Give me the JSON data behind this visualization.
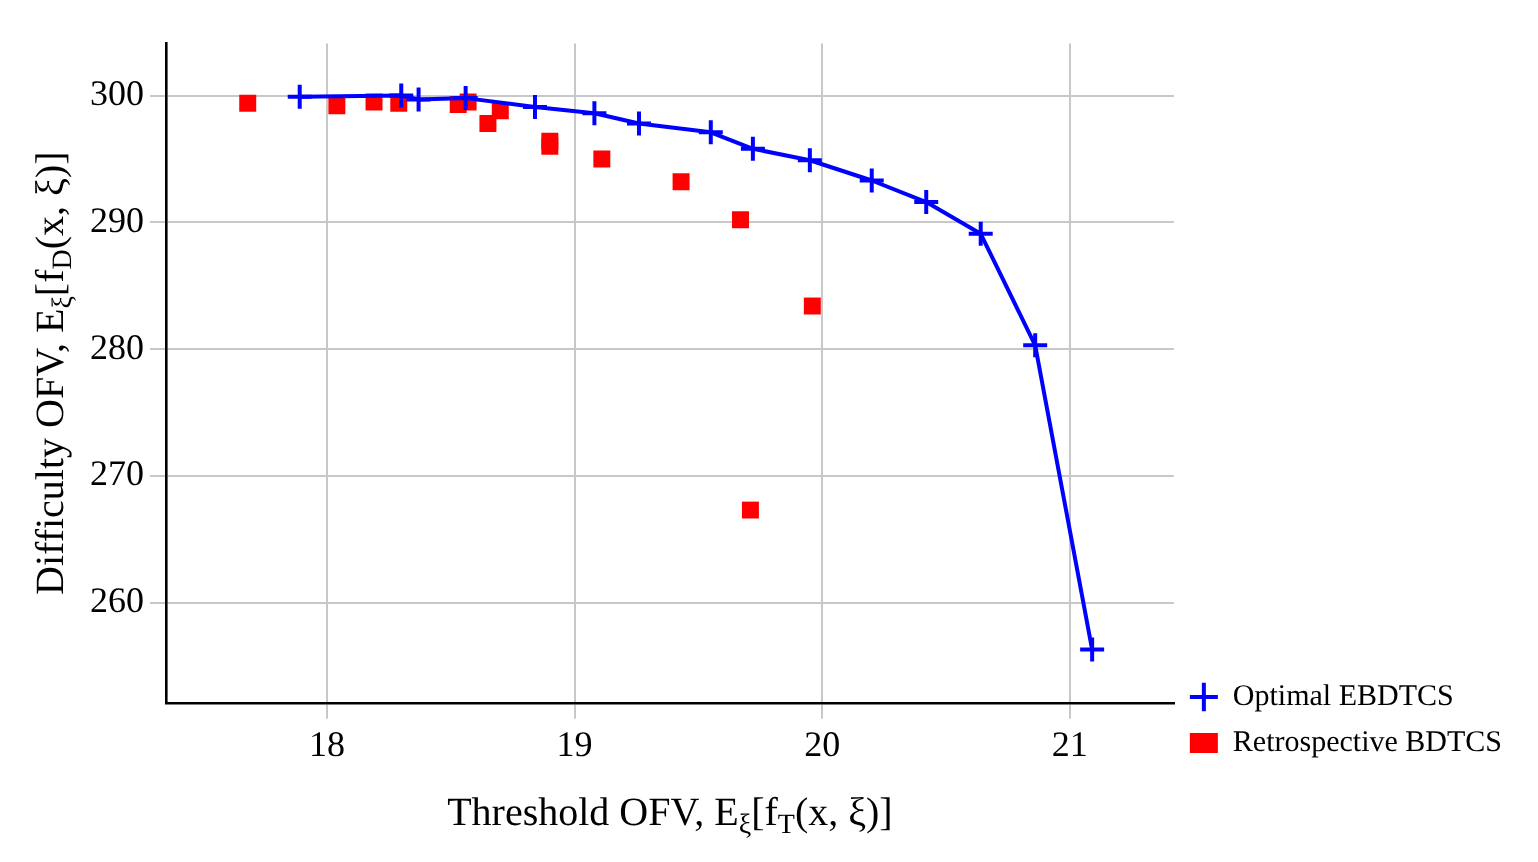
{
  "chart_data": {
    "type": "line",
    "xlabel": "Threshold OFV, E$_{ξ}$[f$_{T}$(x, ξ)]",
    "ylabel": "Difficulty OFV, E$_{ξ}$[f$_{D}$(x, ξ)]",
    "xlim": [
      17.35,
      21.42
    ],
    "xticks": [
      18,
      19,
      20,
      21
    ],
    "ylim": [
      252.1,
      304.1
    ],
    "yticks": [
      260,
      270,
      280,
      290,
      300
    ],
    "grid": true,
    "legend": "right",
    "series": [
      {
        "name": "Optimal EBDTCS",
        "color": "#0000ff",
        "marker": "cross",
        "line_style": "solid",
        "x": [
          17.89,
          18.3,
          18.37,
          18.56,
          18.84,
          19.08,
          19.26,
          19.55,
          19.72,
          19.95,
          20.2,
          20.42,
          20.64,
          20.86,
          21.09
        ],
        "values": [
          299.9,
          300,
          299.7,
          299.8,
          299.1,
          298.6,
          297.8,
          297.1,
          295.8,
          294.9,
          293.3,
          291.6,
          289.1,
          280.3,
          256.3
        ]
      },
      {
        "name": "Retrospective BDTCS",
        "type": "scatter",
        "color": "#ff0000",
        "marker": "square",
        "x": [
          17.68,
          18.04,
          18.19,
          18.29,
          18.53,
          18.57,
          18.7,
          18.65,
          18.9,
          18.9,
          19.11,
          19.43,
          19.67,
          19.96,
          19.71
        ],
        "values": [
          299.4,
          299.2,
          299.5,
          299.4,
          299.3,
          299.5,
          298.8,
          297.8,
          296.4,
          296,
          295,
          293.2,
          290.2,
          283.4,
          267.3
        ]
      }
    ]
  }
}
